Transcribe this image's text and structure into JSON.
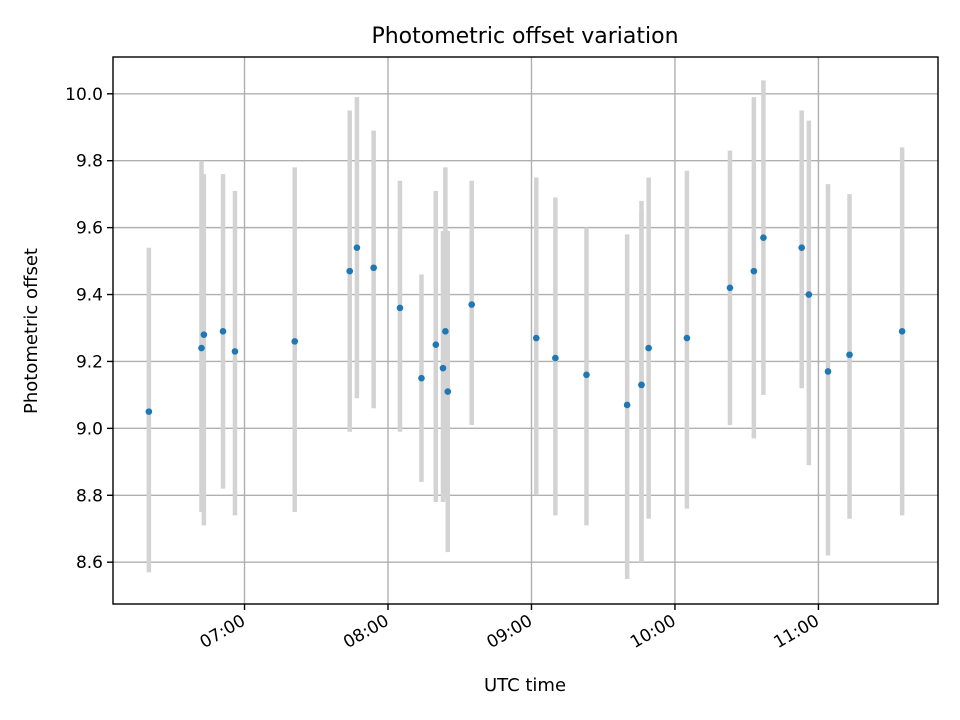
{
  "chart_data": {
    "type": "scatter",
    "title": "Photometric offset variation",
    "xlabel": "UTC time",
    "ylabel": "Photometric offset",
    "x_format": "HH:MM",
    "xlim": [
      "06:05",
      "11:50"
    ],
    "ylim": [
      8.475,
      10.11
    ],
    "xticks": [
      "07:00",
      "08:00",
      "09:00",
      "10:00",
      "11:00"
    ],
    "yticks": [
      8.6,
      8.8,
      9.0,
      9.2,
      9.4,
      9.6,
      9.8,
      10.0
    ],
    "ytick_labels": [
      "8.6",
      "8.8",
      "9.0",
      "9.2",
      "9.4",
      "9.6",
      "9.8",
      "10.0"
    ],
    "grid": true,
    "series": [
      {
        "marker_color": "#1f77b4",
        "errorbar_color": "#d3d3d3",
        "points": [
          {
            "x": "06:20",
            "y": 9.05,
            "ymin": 8.57,
            "ymax": 9.54
          },
          {
            "x": "06:42",
            "y": 9.24,
            "ymin": 8.75,
            "ymax": 9.8
          },
          {
            "x": "06:43",
            "y": 9.28,
            "ymin": 8.71,
            "ymax": 9.76
          },
          {
            "x": "06:51",
            "y": 9.29,
            "ymin": 8.82,
            "ymax": 9.76
          },
          {
            "x": "06:56",
            "y": 9.23,
            "ymin": 8.74,
            "ymax": 9.71
          },
          {
            "x": "07:21",
            "y": 9.26,
            "ymin": 8.75,
            "ymax": 9.78
          },
          {
            "x": "07:44",
            "y": 9.47,
            "ymin": 8.99,
            "ymax": 9.95
          },
          {
            "x": "07:47",
            "y": 9.54,
            "ymin": 9.09,
            "ymax": 9.99
          },
          {
            "x": "07:54",
            "y": 9.48,
            "ymin": 9.06,
            "ymax": 9.89
          },
          {
            "x": "08:05",
            "y": 9.36,
            "ymin": 8.99,
            "ymax": 9.74
          },
          {
            "x": "08:14",
            "y": 9.15,
            "ymin": 8.84,
            "ymax": 9.46
          },
          {
            "x": "08:20",
            "y": 9.25,
            "ymin": 8.78,
            "ymax": 9.71
          },
          {
            "x": "08:23",
            "y": 9.18,
            "ymin": 8.78,
            "ymax": 9.59
          },
          {
            "x": "08:24",
            "y": 9.29,
            "ymin": 8.79,
            "ymax": 9.78
          },
          {
            "x": "08:25",
            "y": 9.11,
            "ymin": 8.63,
            "ymax": 9.59
          },
          {
            "x": "08:35",
            "y": 9.37,
            "ymin": 9.01,
            "ymax": 9.74
          },
          {
            "x": "09:02",
            "y": 9.27,
            "ymin": 8.8,
            "ymax": 9.75
          },
          {
            "x": "09:10",
            "y": 9.21,
            "ymin": 8.74,
            "ymax": 9.69
          },
          {
            "x": "09:23",
            "y": 9.16,
            "ymin": 8.71,
            "ymax": 9.6
          },
          {
            "x": "09:40",
            "y": 9.07,
            "ymin": 8.55,
            "ymax": 9.58
          },
          {
            "x": "09:46",
            "y": 9.13,
            "ymin": 8.6,
            "ymax": 9.68
          },
          {
            "x": "09:46",
            "y": 9.13,
            "ymin": 8.6,
            "ymax": 9.65
          },
          {
            "x": "09:49",
            "y": 9.24,
            "ymin": 8.73,
            "ymax": 9.75
          },
          {
            "x": "10:05",
            "y": 9.27,
            "ymin": 8.76,
            "ymax": 9.77
          },
          {
            "x": "10:23",
            "y": 9.42,
            "ymin": 9.01,
            "ymax": 9.83
          },
          {
            "x": "10:33",
            "y": 9.47,
            "ymin": 8.97,
            "ymax": 9.99
          },
          {
            "x": "10:37",
            "y": 9.57,
            "ymin": 9.1,
            "ymax": 10.04
          },
          {
            "x": "10:53",
            "y": 9.54,
            "ymin": 9.12,
            "ymax": 9.95
          },
          {
            "x": "10:56",
            "y": 9.4,
            "ymin": 8.89,
            "ymax": 9.92
          },
          {
            "x": "11:04",
            "y": 9.17,
            "ymin": 8.62,
            "ymax": 9.73
          },
          {
            "x": "11:13",
            "y": 9.22,
            "ymin": 8.73,
            "ymax": 9.7
          },
          {
            "x": "11:35",
            "y": 9.29,
            "ymin": 8.74,
            "ymax": 9.84
          }
        ]
      }
    ]
  }
}
